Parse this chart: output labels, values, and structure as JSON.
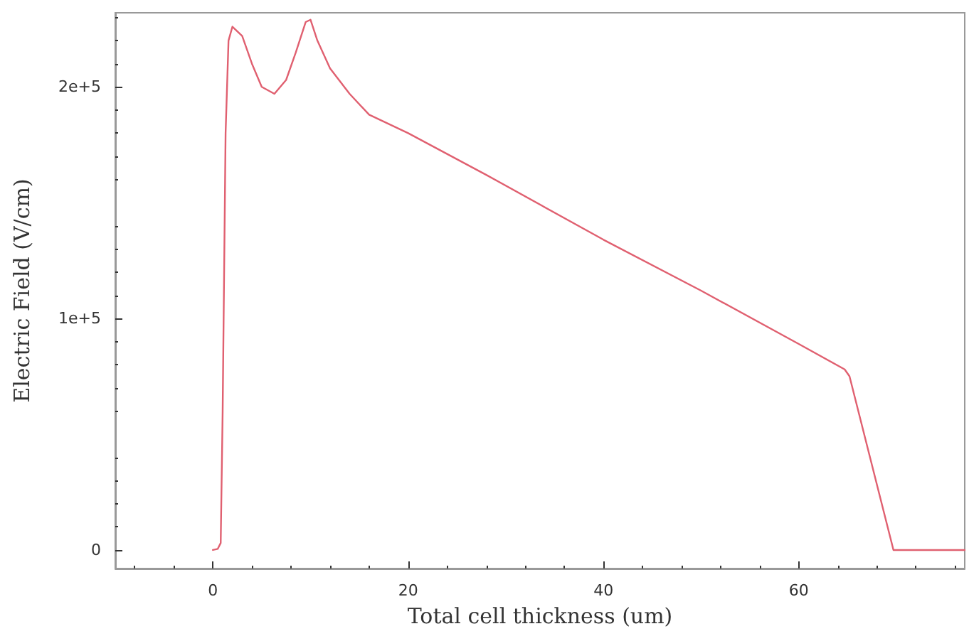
{
  "chart_data": {
    "type": "line",
    "xlabel": "Total cell thickness (um)",
    "ylabel": "Electric Field (V/cm)",
    "xlim": [
      -10,
      77
    ],
    "ylim": [
      -8000,
      232000
    ],
    "xticks": [
      0,
      20,
      40,
      60
    ],
    "yticks": [
      {
        "value": 0,
        "label": "0"
      },
      {
        "value": 100000,
        "label": "1e+5"
      },
      {
        "value": 200000,
        "label": "2e+5"
      }
    ],
    "grid": false,
    "marker": "none",
    "line_style": "solid",
    "series": [
      {
        "color": "#e06070",
        "x": [
          0,
          0.5,
          0.8,
          1,
          1.3,
          1.6,
          2,
          3,
          4,
          5,
          6.3,
          7.5,
          8.5,
          9.5,
          10,
          10.7,
          12,
          14,
          16,
          20,
          28,
          40,
          50,
          60,
          64.7,
          65.2,
          69.7,
          77
        ],
        "values": [
          0,
          500,
          3000,
          60000,
          180000,
          220000,
          226000,
          222000,
          210000,
          200000,
          197000,
          203000,
          215000,
          228000,
          229000,
          220000,
          208000,
          197000,
          188000,
          180000,
          162000,
          134000,
          112000,
          89000,
          78000,
          75000,
          0,
          0
        ]
      }
    ]
  }
}
